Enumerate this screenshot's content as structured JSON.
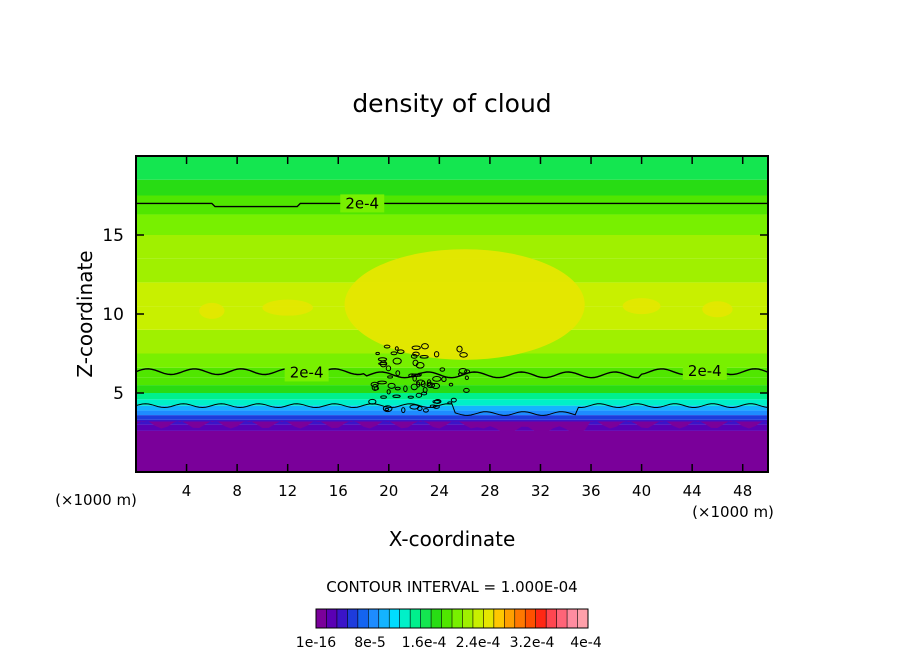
{
  "chart_data": {
    "type": "heatmap",
    "title": "density of cloud",
    "xlabel": "X-coordinate",
    "ylabel": "Z-coordinate",
    "x_unit": "(×1000 m)",
    "y_unit": "(×1000 m)",
    "xlim": [
      0,
      50
    ],
    "ylim": [
      0,
      20
    ],
    "x_ticks": [
      4,
      8,
      12,
      16,
      20,
      24,
      28,
      32,
      36,
      40,
      44,
      48
    ],
    "y_ticks": [
      5,
      10,
      15
    ],
    "contour_interval_text": "CONTOUR INTERVAL = 1.000E-04",
    "colorbar_labels": [
      "1e-16",
      "8e-5",
      "1.6e-4",
      "2.4e-4",
      "3.2e-4",
      "4e-4"
    ],
    "colorbar_colors": [
      "#7a009a",
      "#5a00b4",
      "#3b14c8",
      "#1e3cdc",
      "#1464f0",
      "#1e8cff",
      "#14b4ff",
      "#00dcff",
      "#00f0c8",
      "#00f08c",
      "#14e650",
      "#28dc14",
      "#50e600",
      "#78f000",
      "#a0f000",
      "#c8f000",
      "#e6e600",
      "#ffc800",
      "#ffa000",
      "#ff7800",
      "#ff5000",
      "#ff2814",
      "#ff4650",
      "#ff6478",
      "#ff8ca0",
      "#ffa0aa"
    ],
    "contour_labels": [
      "2e-4",
      "2e-4",
      "2e-4"
    ],
    "profile": {
      "z": [
        0,
        2.6,
        3.0,
        3.3,
        3.6,
        3.9,
        4.2,
        4.6,
        5.0,
        5.5,
        6.0,
        6.6,
        7.5,
        9.0,
        10.5,
        12.0,
        13.5,
        15.0,
        16.3,
        17.5,
        18.5,
        20.0
      ],
      "value": [
        null,
        5e-07,
        2e-05,
        4e-05,
        6e-05,
        8e-05,
        0.0001,
        0.000125,
        0.00015,
        0.00017,
        0.00019,
        0.0002,
        0.000215,
        0.00023,
        0.00024,
        0.000238,
        0.000228,
        0.000218,
        0.000205,
        0.000192,
        0.000178,
        0.000168
      ]
    }
  }
}
